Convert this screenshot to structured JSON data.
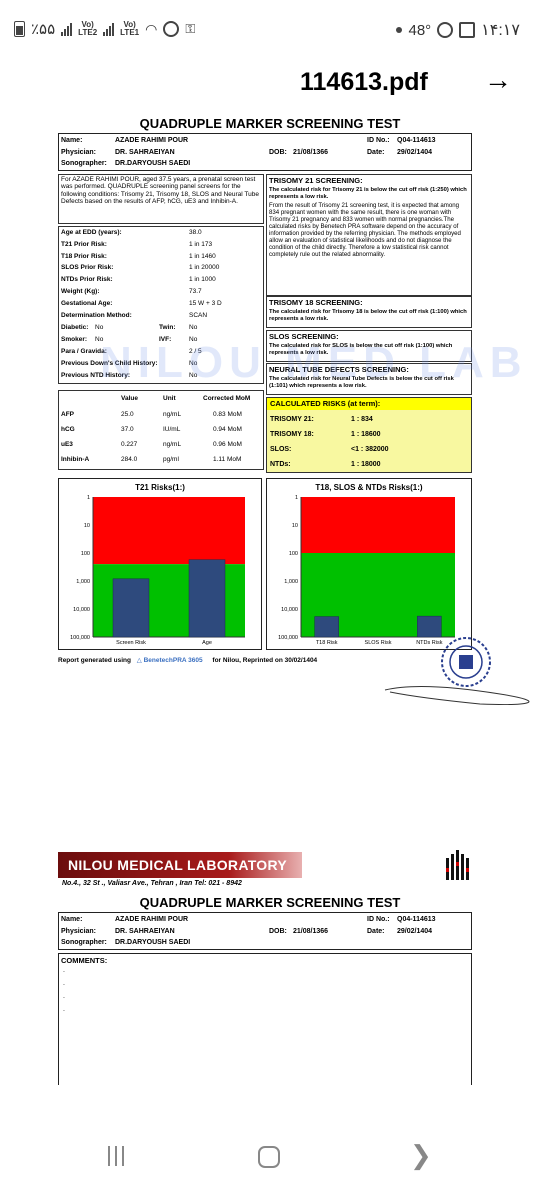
{
  "status_bar": {
    "battery_text": "٪۵۵",
    "sim2_label_top": "Vo)",
    "sim2_label_bottom": "LTE2",
    "sim1_label_top": "Vo)",
    "sim1_label_bottom": "LTE1",
    "temperature": "48°",
    "time": "۱۴:۱۷"
  },
  "title_bar": {
    "file_name": "114613.pdf",
    "forward_icon": "arrow-right-icon"
  },
  "report": {
    "title": "QUADRUPLE MARKER SCREENING TEST",
    "header": {
      "name_label": "Name:",
      "name_value": "AZADE RAHIMI POUR",
      "id_label": "ID No.:",
      "id_value": "Q04-114613",
      "physician_label": "Physician:",
      "physician_value": "DR. SAHRAEIYAN",
      "dob_label": "DOB:",
      "dob_value": "21/08/1366",
      "date_label": "Date:",
      "date_value": "29/02/1404",
      "sonographer_label": "Sonographer:",
      "sonographer_value": "DR.DARYOUSH SAEDI"
    },
    "intro": "For AZADE RAHIMI POUR, aged 37.5 years, a prenatal screen test was performed. QUADRUPLE screening panel screens for the following conditions: Trisomy 21, Trisomy 18, SLOS and Neural Tube Defects based on the results of AFP, hCG, uE3 and Inhibin-A.",
    "params": [
      {
        "label": "Age at EDD (years):",
        "value": "38.0"
      },
      {
        "label": "T21 Prior Risk:",
        "value": "1 in 173"
      },
      {
        "label": "T18 Prior Risk:",
        "value": "1 in 1460"
      },
      {
        "label": "SLOS Prior Risk:",
        "value": "1 in 20000"
      },
      {
        "label": "NTDs Prior Risk:",
        "value": "1 in 1000"
      },
      {
        "label": "Weight (Kg):",
        "value": "73.7"
      },
      {
        "label": "Gestational Age:",
        "value": "15 W + 3 D"
      },
      {
        "label": "Determination Method:",
        "value": "SCAN"
      }
    ],
    "flags": {
      "diabetic_label": "Diabetic:",
      "diabetic_value": "No",
      "twin_label": "Twin:",
      "twin_value": "No",
      "smoker_label": "Smoker:",
      "smoker_value": "No",
      "ivf_label": "IVF:",
      "ivf_value": "No",
      "para_label": "Para / Gravida:",
      "para_value": "2 / 5",
      "prev_down_label": "Previous Down's Child History:",
      "prev_down_value": "No",
      "prev_ntd_label": "Previous NTD History:",
      "prev_ntd_value": "No"
    },
    "markers": {
      "headers": [
        "Value",
        "Unit",
        "Corrected MoM"
      ],
      "rows": [
        {
          "name": "AFP",
          "value": "25.0",
          "unit": "ng/mL",
          "mom": "0.83 MoM"
        },
        {
          "name": "hCG",
          "value": "37.0",
          "unit": "IU/mL",
          "mom": "0.94 MoM"
        },
        {
          "name": "uE3",
          "value": "0.227",
          "unit": "ng/mL",
          "mom": "0.96 MoM"
        },
        {
          "name": "Inhibin-A",
          "value": "284.0",
          "unit": "pg/ml",
          "mom": "1.11 MoM"
        }
      ]
    },
    "t21": {
      "title": "TRISOMY 21 SCREENING:",
      "result": "The calculated risk for Trisomy 21 is below the cut off risk (1:250) which represents a low risk.",
      "body": "From the result of Trisomy 21 screening test, it is expected that among 834 pregnant women with the same result, there is one woman with Trisomy 21 pregnancy and 833 women with normal pregnancies.The calculated risks by Benetech PRA software depend on the accuracy of information provided by the referring physician. The methods employed allow an evaluation of statistical likelihoods and do not diagnose the condition of the child directly. Therefore a low statistical risk cannot completely rule out the related abnormality."
    },
    "t18": {
      "title": "TRISOMY 18 SCREENING:",
      "result": "The calculated risk for Trisomy 18 is below the cut off risk (1:100) which represents a low risk."
    },
    "slos": {
      "title": "SLOS SCREENING:",
      "result": "The calculated risk for SLOS is below the cut off risk (1:100) which represents a low risk."
    },
    "ntd": {
      "title": "NEURAL TUBE DEFECTS SCREENING:",
      "result": "The calculated risk for Neural Tube Defects is below the cut off risk (1:101) which represents a low risk."
    },
    "calculated": {
      "title": "CALCULATED RISKS (at term):",
      "rows": [
        {
          "label": "TRISOMY 21:",
          "value": "1 : 834"
        },
        {
          "label": "TRISOMY 18:",
          "value": "1 : 18600"
        },
        {
          "label": "SLOS:",
          "value": "<1 : 382000"
        },
        {
          "label": "NTDs:",
          "value": "1 : 18000"
        }
      ]
    },
    "watermark": "NILOU MED LAB",
    "footer": {
      "prefix": "Report generated using",
      "software": "BenetechPRA 3605",
      "suffix": "for Nilou, Reprinted on 30/02/1404"
    }
  },
  "chart_data": [
    {
      "type": "bar",
      "title": "T21 Risks(1:)",
      "categories": [
        "Screen Risk",
        "Age"
      ],
      "values": [
        834,
        173
      ],
      "y_scale": "log, inverted",
      "y_ticks": [
        "1",
        "10",
        "100",
        "1,000",
        "10,000",
        "100,000"
      ],
      "cutoff": 250,
      "colors": {
        "high_risk": "#ff0000",
        "low_risk": "#00c000",
        "bar": "#2e4a7d"
      }
    },
    {
      "type": "bar",
      "title": "T18, SLOS & NTDs Risks(1:)",
      "categories": [
        "T18 Risk",
        "SLOS Risk",
        "NTDs Risk"
      ],
      "values": [
        18600,
        382000,
        18000
      ],
      "y_scale": "log, inverted",
      "y_ticks": [
        "1",
        "10",
        "100",
        "1,000",
        "10,000",
        "100,000"
      ],
      "cutoff": 100,
      "colors": {
        "high_risk": "#ff0000",
        "low_risk": "#00c000",
        "bar": "#2e4a7d"
      }
    }
  ],
  "page2": {
    "lab_name": "NILOU MEDICAL LABORATORY",
    "address": "No.4., 32 St ., Valiasr Ave., Tehran   , Iran  Tel: 021 - 8942",
    "title": "QUADRUPLE MARKER SCREENING TEST",
    "comments_label": "COMMENTS:",
    "comment_lines": [
      ".",
      ".",
      ".",
      "."
    ]
  }
}
